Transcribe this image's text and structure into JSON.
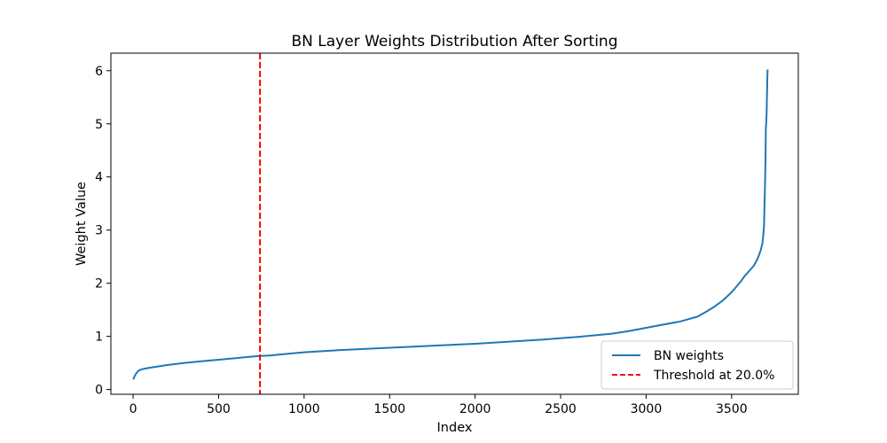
{
  "chart_data": {
    "type": "line",
    "title": "BN Layer Weights Distribution After Sorting",
    "xlabel": "Index",
    "ylabel": "Weight Value",
    "xlim": [
      -130,
      3890
    ],
    "ylim": [
      -0.09,
      6.33
    ],
    "xticks": [
      0,
      500,
      1000,
      1500,
      2000,
      2500,
      3000,
      3500
    ],
    "yticks": [
      0,
      1,
      2,
      3,
      4,
      5,
      6
    ],
    "grid": false,
    "legend_position": "lower-right",
    "series": [
      {
        "name": "BN weights",
        "color": "#1f77b4",
        "style": "solid",
        "x": [
          0,
          5,
          10,
          20,
          30,
          50,
          80,
          120,
          200,
          300,
          400,
          500,
          600,
          700,
          742,
          800,
          900,
          1000,
          1200,
          1400,
          1600,
          1800,
          2000,
          2200,
          2400,
          2600,
          2800,
          2900,
          3000,
          3100,
          3200,
          3300,
          3350,
          3400,
          3450,
          3500,
          3550,
          3580,
          3600,
          3630,
          3650,
          3660,
          3670,
          3680,
          3685,
          3690,
          3692,
          3695,
          3698,
          3700,
          3703,
          3705,
          3706,
          3708,
          3710,
          3712
        ],
        "y": [
          0.19,
          0.22,
          0.26,
          0.31,
          0.35,
          0.38,
          0.4,
          0.42,
          0.46,
          0.5,
          0.53,
          0.56,
          0.59,
          0.62,
          0.63,
          0.64,
          0.67,
          0.7,
          0.74,
          0.77,
          0.8,
          0.83,
          0.86,
          0.9,
          0.94,
          0.99,
          1.05,
          1.1,
          1.16,
          1.22,
          1.28,
          1.37,
          1.46,
          1.56,
          1.68,
          1.83,
          2.02,
          2.15,
          2.22,
          2.33,
          2.45,
          2.53,
          2.62,
          2.75,
          2.9,
          3.1,
          3.4,
          3.8,
          4.3,
          4.9,
          5.05,
          5.2,
          5.4,
          5.7,
          6.0,
          6.02
        ]
      }
    ],
    "reference_lines": [
      {
        "name": "Threshold at 20.0%",
        "orientation": "vertical",
        "x": 742,
        "color": "#ff0000",
        "style": "dashed"
      }
    ]
  }
}
